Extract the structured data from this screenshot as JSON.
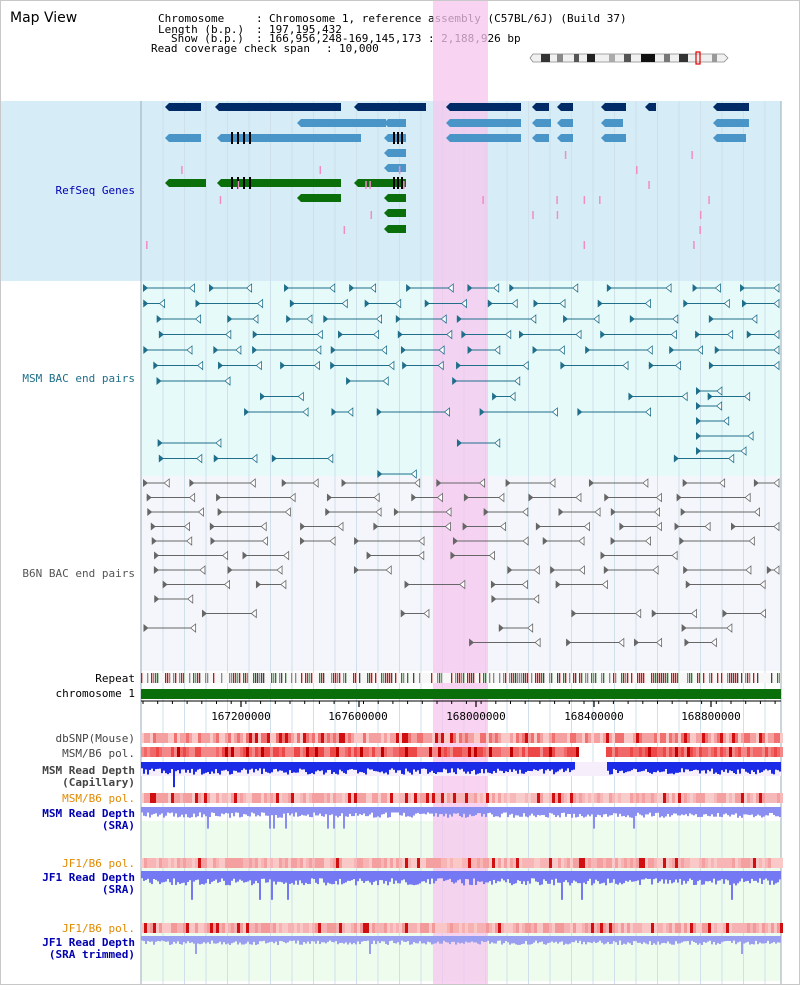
{
  "app": {
    "title": "Map View"
  },
  "header": {
    "chromosome_label": "Chromosome",
    "chromosome_value": "Chromosome 1, reference assembly (C57BL/6J) (Build 37)",
    "length_label": "Length (b.p.)",
    "length_value": "197,195,432",
    "show_label": "Show (b.p.)",
    "show_value": "166,956,248-169,145,173 : 2,188,926 bp",
    "span_label": "Read coverage check span",
    "span_value": "10,000"
  },
  "tracks": {
    "refseq": {
      "label": "RefSeq Genes",
      "color": "#0000b0"
    },
    "msm_bac": {
      "label": "MSM BAC end pairs",
      "color": "#1f6f8b"
    },
    "b6n_bac": {
      "label": "B6N BAC end pairs",
      "color": "#555555"
    },
    "repeat": {
      "label": "Repeat"
    },
    "chromosome": {
      "label": "chromosome 1"
    },
    "dbsnp": {
      "label": "dbSNP(Mouse)"
    },
    "msm_b6_pol_cap": {
      "label": "MSM/B6 pol."
    },
    "msm_depth_cap": {
      "line1": "MSM Read Depth",
      "line2": "(Capillary)"
    },
    "msm_b6_pol_sra": {
      "label": "MSM/B6 pol.",
      "color": "#e08a00"
    },
    "msm_depth_sra": {
      "line1": "MSM Read Depth",
      "line2": "(SRA)",
      "color": "#0000b0"
    },
    "jf1_b6_pol": {
      "label": "JF1/B6 pol.",
      "color": "#e08a00"
    },
    "jf1_depth_sra": {
      "line1": "JF1 Read Depth",
      "line2": "(SRA)",
      "color": "#0000b0"
    },
    "jf1_b6_pol_trim": {
      "label": "JF1/B6 pol.",
      "color": "#e08a00"
    },
    "jf1_depth_trim": {
      "line1": "JF1 Read Depth",
      "line2": "(SRA trimmed)",
      "color": "#0000b0"
    }
  },
  "axis": {
    "ticks": [
      "167200000",
      "167600000",
      "168000000",
      "168400000",
      "168800000"
    ]
  },
  "colors": {
    "refseq_dark": "#002b66",
    "refseq_mid": "#4a95c8",
    "refseq_green": "#0a6e0a",
    "highlight": "#f5c6ee",
    "chrom_bar": "#0a6e0a"
  }
}
